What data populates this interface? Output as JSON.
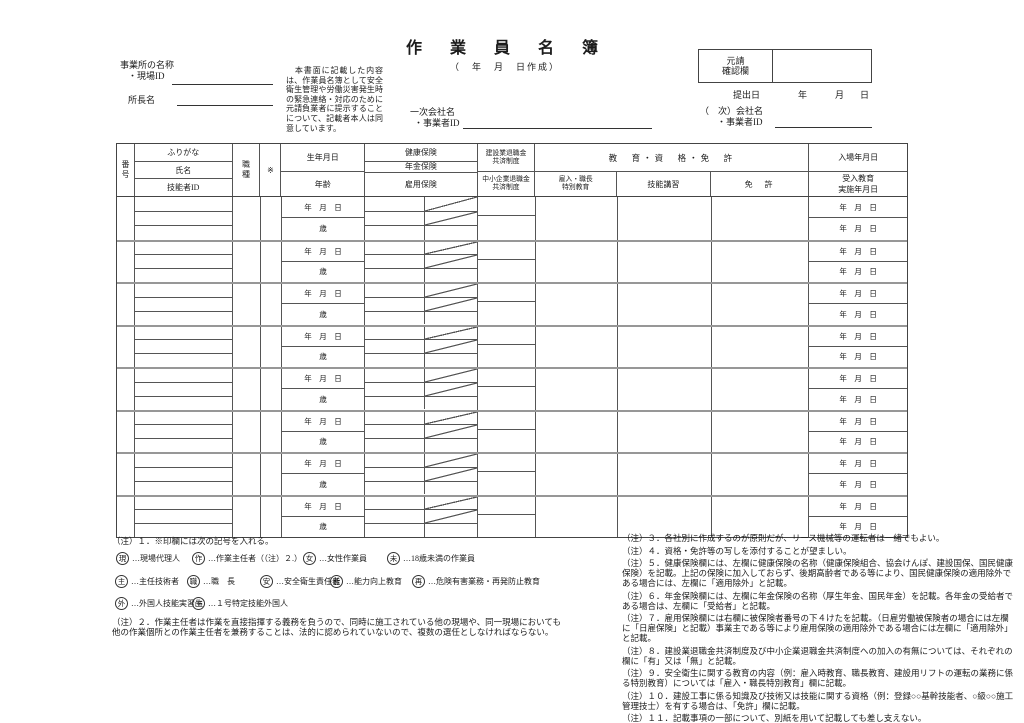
{
  "header": {
    "title": "作　業　員　名　簿",
    "subtitle": "（　年　月　日作成）",
    "office_name_label": "事業所の名称",
    "site_id_label": "・現場ID",
    "director_label": "所長名",
    "notice": "　本書面に記載した内容は、作業員名簿として安全衛生管理や労働災害発生時の緊急連絡・対応のために元請負業者に提示することについて、記載者本人は同意しています。",
    "primary_company_label": "一次会社名",
    "primary_company_id_label": "・事業者ID",
    "approval_box_label": "元請\n確認欄",
    "submit_date_label": "提出日",
    "date_units": {
      "year": "年",
      "month": "月",
      "day": "日"
    },
    "nth_company_label": "（　次）会社名",
    "nth_company_id_label": "・事業者ID"
  },
  "table": {
    "row_count": 8,
    "headers": {
      "number": "番号",
      "furigana": "ふりがな",
      "name": "氏名",
      "worker_id": "技能者ID",
      "job_type": "職種",
      "mark": "※",
      "birth_date": "生年月日",
      "age": "年齢",
      "health_insurance": "健康保険",
      "pension_insurance": "年金保険",
      "employment_insurance": "雇用保険",
      "kentaikyo": "建設業退職金\n共済制度",
      "chutaikyo": "中小企業退職金\n共済制度",
      "education_group": "教　育・資　格・免　許",
      "special_education": "雇入・職長\n特別教育",
      "skill_training": "技能講習",
      "license": "免　許",
      "entry_date": "入場年月日",
      "training_date": "受入教育\n実施年月日"
    },
    "row_labels": {
      "date": "年　月　日",
      "age_unit": "歳"
    }
  },
  "notes_left": {
    "note1": "（注）１．※印欄には次の記号を入れる。",
    "symbols": [
      {
        "mark": "現",
        "desc": "…現場代理人"
      },
      {
        "mark": "作",
        "desc": "…作業主任者（（注）２.）"
      },
      {
        "mark": "女",
        "desc": "…女性作業員"
      },
      {
        "mark": "未",
        "desc": "…18歳未満の作業員"
      },
      {
        "mark": "主",
        "desc": "…主任技術者"
      },
      {
        "mark": "職",
        "desc": "…職　長"
      },
      {
        "mark": "安",
        "desc": "…安全衛生責任者"
      },
      {
        "mark": "能",
        "desc": "…能力向上教育"
      },
      {
        "mark": "再",
        "desc": "…危険有害業務・再発防止教育"
      },
      {
        "mark": "外",
        "desc": "…外国人技能実習生"
      },
      {
        "mark": "1特",
        "desc": "…１号特定技能外国人"
      }
    ],
    "note2": "（注）２．作業主任者は作業を直接指揮する義務を負うので、同時に施工されている他の現場や、同一現場においても他の作業個所との作業主任者を兼務することは、法的に認められていないので、複数の選任としなければならない。"
  },
  "notes_right": {
    "items": [
      "（注）３．各社別に作成するのが原則だが、リース機械等の運転者は一緒でもよい。",
      "（注）４．資格・免許等の写しを添付することが望ましい。",
      "（注）５．健康保険欄には、左欄に健康保険の名称（健康保険組合、協会けんぽ、建設国保、国民健康保険）を記載。上記の保険に加入しておらず、後期高齢者である等により、国民健康保険の適用除外である場合には、左欄に「適用除外」と記載。",
      "（注）６．年金保険欄には、左欄に年金保険の名称（厚生年金、国民年金）を記載。各年金の受給者である場合は、左欄に「受給者」と記載。",
      "（注）７．雇用保険欄には右欄に被保険者番号の下４けたを記載。（日雇労働被保険者の場合には左欄に「日雇保険」と記載）事業主である等により雇用保険の適用除外である場合には左欄に「適用除外」と記載。",
      "（注）８．建設業退職金共済制度及び中小企業退職金共済制度への加入の有無については、それぞれの欄に「有」又は「無」と記載。",
      "（注）９．安全衛生に関する教育の内容（例：雇入時教育、職長教育、建設用リフトの運転の業務に係る特別教育）については「雇入・職長特別教育」欄に記載。",
      "（注）１０．建設工事に係る知識及び技術又は技能に関する資格（例：登録○○基幹技能者、○級○○施工管理技士）を有する場合は、「免許」欄に記載。",
      "（注）１１．記載事項の一部について、別紙を用いて記載しても差し支えない。"
    ]
  }
}
